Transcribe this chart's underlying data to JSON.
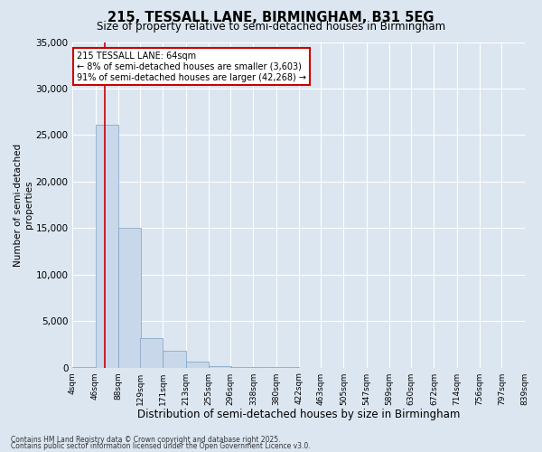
{
  "title": "215, TESSALL LANE, BIRMINGHAM, B31 5EG",
  "subtitle": "Size of property relative to semi-detached houses in Birmingham",
  "xlabel": "Distribution of semi-detached houses by size in Birmingham",
  "ylabel": "Number of semi-detached\nproperties",
  "footer1": "Contains HM Land Registry data © Crown copyright and database right 2025.",
  "footer2": "Contains public sector information licensed under the Open Government Licence v3.0.",
  "bin_labels": [
    "4sqm",
    "46sqm",
    "88sqm",
    "129sqm",
    "171sqm",
    "213sqm",
    "255sqm",
    "296sqm",
    "338sqm",
    "380sqm",
    "422sqm",
    "463sqm",
    "505sqm",
    "547sqm",
    "589sqm",
    "630sqm",
    "672sqm",
    "714sqm",
    "756sqm",
    "797sqm",
    "839sqm"
  ],
  "bar_values": [
    50,
    26100,
    15000,
    3200,
    1800,
    600,
    200,
    80,
    30,
    10,
    5,
    3,
    2,
    1,
    1,
    0,
    0,
    0,
    0,
    0
  ],
  "bar_color": "#c8d8ea",
  "bar_edge_color": "#7aa0c0",
  "background_color": "#dce6f0",
  "grid_color": "#ffffff",
  "ylim": [
    0,
    35000
  ],
  "yticks": [
    0,
    5000,
    10000,
    15000,
    20000,
    25000,
    30000,
    35000
  ],
  "property_size_sqm": 64,
  "property_line_color": "#cc0000",
  "annotation_title": "215 TESSALL LANE: 64sqm",
  "annotation_line1": "← 8% of semi-detached houses are smaller (3,603)",
  "annotation_line2": "91% of semi-detached houses are larger (42,268) →",
  "annotation_box_color": "#cc0000",
  "bin_starts": [
    4,
    46,
    88,
    129,
    171,
    213,
    255,
    296,
    338,
    380,
    422,
    463,
    505,
    547,
    589,
    630,
    672,
    714,
    756,
    797
  ],
  "bin_width": 42
}
